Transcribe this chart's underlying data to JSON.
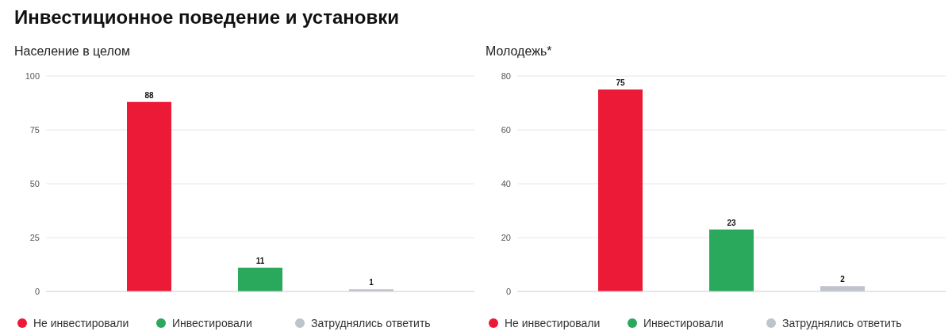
{
  "chart_data": [
    {
      "type": "bar",
      "title": "Инвестиционное поведение и установки",
      "subtitle": "Население в целом",
      "categories": [
        null
      ],
      "series": [
        {
          "name": "Не инвестировали",
          "color": "#ec1a36",
          "values": [
            88
          ]
        },
        {
          "name": "Инвестировали",
          "color": "#2aa85c",
          "values": [
            11
          ]
        },
        {
          "name": "Затруднялись ответить",
          "color": "#bfc3cc",
          "values": [
            1
          ]
        }
      ],
      "ylim": [
        0,
        100
      ],
      "yticks": [
        0,
        25,
        50,
        75,
        100
      ],
      "grid": "y",
      "legend": "bottom",
      "data_labels": true
    },
    {
      "type": "bar",
      "subtitle": "Молодежь*",
      "categories": [
        null
      ],
      "series": [
        {
          "name": "Не инвестировали",
          "color": "#ec1a36",
          "values": [
            75
          ]
        },
        {
          "name": "Инвестировали",
          "color": "#2aa85c",
          "values": [
            23
          ]
        },
        {
          "name": "Затруднялись ответить",
          "color": "#bfc3cc",
          "values": [
            2
          ]
        }
      ],
      "ylim": [
        0,
        80
      ],
      "yticks": [
        0,
        20,
        40,
        60,
        80
      ],
      "grid": "y",
      "legend": "bottom",
      "data_labels": true
    }
  ]
}
